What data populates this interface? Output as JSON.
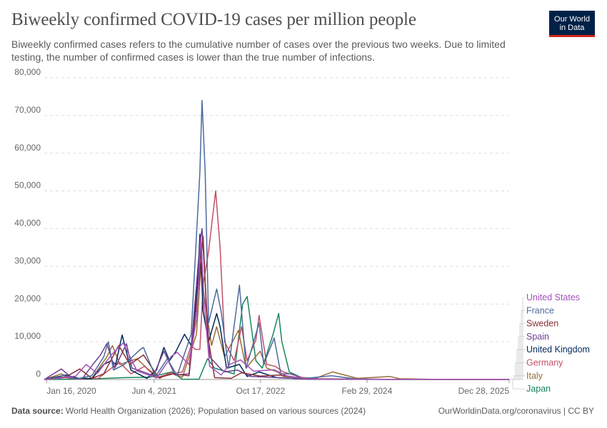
{
  "title": "Biweekly confirmed COVID-19 cases per million people",
  "subtitle": "Biweekly confirmed cases refers to the cumulative number of cases over the previous two weeks. Due to limited testing, the number of confirmed cases is lower than the true number of infections.",
  "logo": {
    "line1": "Our World",
    "line2": "in Data",
    "bg": "#002147",
    "accent": "#ce261e"
  },
  "footer": {
    "source_label": "Data source:",
    "source_text": "World Health Organization (2026); Population based on various sources (2024)",
    "right_text": "OurWorldinData.org/coronavirus | CC BY"
  },
  "chart_data": {
    "type": "line",
    "title": "Biweekly confirmed COVID-19 cases per million people",
    "xlabel": "",
    "ylabel": "",
    "x_ticks": [
      "Jan 16, 2020",
      "Jun 4, 2021",
      "Oct 17, 2022",
      "Feb 29, 2024",
      "Dec 28, 2025"
    ],
    "x_range": [
      "2020-01-05",
      "2025-12-28"
    ],
    "ylim": [
      0,
      80000
    ],
    "y_ticks": [
      0,
      10000,
      20000,
      30000,
      40000,
      50000,
      60000,
      70000,
      80000
    ],
    "y_tick_labels": [
      "0",
      "10,000",
      "20,000",
      "30,000",
      "40,000",
      "50,000",
      "60,000",
      "70,000",
      "80,000"
    ],
    "grid": "horizontal dashed",
    "legend": "right",
    "series": [
      {
        "name": "United States",
        "color": "#a652ba",
        "points": [
          [
            "2020-01-05",
            0
          ],
          [
            "2020-03-15",
            300
          ],
          [
            "2020-06-01",
            900
          ],
          [
            "2020-07-20",
            4000
          ],
          [
            "2020-09-10",
            1600
          ],
          [
            "2020-11-15",
            6500
          ],
          [
            "2021-01-10",
            9700
          ],
          [
            "2021-03-15",
            2300
          ],
          [
            "2021-06-15",
            400
          ],
          [
            "2021-08-25",
            6200
          ],
          [
            "2021-09-20",
            7200
          ],
          [
            "2021-11-15",
            4000
          ],
          [
            "2021-12-20",
            16000
          ],
          [
            "2022-01-10",
            38000
          ],
          [
            "2022-01-25",
            20000
          ],
          [
            "2022-02-20",
            3500
          ],
          [
            "2022-04-15",
            1200
          ],
          [
            "2022-05-25",
            4000
          ],
          [
            "2022-07-15",
            5200
          ],
          [
            "2022-09-15",
            2200
          ],
          [
            "2022-12-20",
            2600
          ],
          [
            "2023-02-15",
            1000
          ],
          [
            "2023-05-15",
            200
          ],
          [
            "2023-08-01",
            100
          ],
          [
            "2024-06-01",
            50
          ],
          [
            "2025-12-28",
            30
          ]
        ]
      },
      {
        "name": "France",
        "color": "#4c6a9c",
        "points": [
          [
            "2020-01-05",
            0
          ],
          [
            "2020-03-15",
            600
          ],
          [
            "2020-04-01",
            1200
          ],
          [
            "2020-06-01",
            100
          ],
          [
            "2020-08-15",
            1000
          ],
          [
            "2020-10-10",
            6000
          ],
          [
            "2020-11-01",
            10000
          ],
          [
            "2020-11-25",
            2500
          ],
          [
            "2021-01-15",
            4000
          ],
          [
            "2021-04-01",
            8000
          ],
          [
            "2021-04-15",
            8500
          ],
          [
            "2021-06-10",
            800
          ],
          [
            "2021-08-05",
            5500
          ],
          [
            "2021-09-20",
            1000
          ],
          [
            "2021-11-25",
            12000
          ],
          [
            "2022-01-05",
            55000
          ],
          [
            "2022-01-15",
            74000
          ],
          [
            "2022-01-30",
            55000
          ],
          [
            "2022-02-15",
            15000
          ],
          [
            "2022-03-25",
            24000
          ],
          [
            "2022-04-15",
            18000
          ],
          [
            "2022-05-20",
            3000
          ],
          [
            "2022-07-10",
            25000
          ],
          [
            "2022-08-10",
            3000
          ],
          [
            "2022-10-10",
            15000
          ],
          [
            "2022-11-01",
            4000
          ],
          [
            "2022-12-20",
            11000
          ],
          [
            "2023-01-20",
            1500
          ],
          [
            "2023-03-15",
            1500
          ],
          [
            "2023-05-01",
            200
          ],
          [
            "2023-09-15",
            1000
          ],
          [
            "2024-01-15",
            100
          ],
          [
            "2024-06-01",
            50
          ],
          [
            "2025-12-28",
            50
          ]
        ]
      },
      {
        "name": "Sweden",
        "color": "#883039",
        "points": [
          [
            "2020-01-05",
            0
          ],
          [
            "2020-04-15",
            700
          ],
          [
            "2020-06-20",
            2800
          ],
          [
            "2020-08-15",
            300
          ],
          [
            "2020-10-10",
            1500
          ],
          [
            "2020-12-20",
            9000
          ],
          [
            "2021-02-10",
            4000
          ],
          [
            "2021-04-15",
            6500
          ],
          [
            "2021-06-25",
            500
          ],
          [
            "2021-09-01",
            1500
          ],
          [
            "2021-11-15",
            1000
          ],
          [
            "2021-12-30",
            25000
          ],
          [
            "2022-01-20",
            38000
          ],
          [
            "2022-02-10",
            12000
          ],
          [
            "2022-03-15",
            500
          ],
          [
            "2022-06-01",
            300
          ],
          [
            "2022-07-20",
            1800
          ],
          [
            "2022-10-15",
            900
          ],
          [
            "2023-01-15",
            1200
          ],
          [
            "2023-05-15",
            200
          ],
          [
            "2024-06-01",
            20
          ],
          [
            "2025-12-28",
            10
          ]
        ]
      },
      {
        "name": "Spain",
        "color": "#6d3e91",
        "points": [
          [
            "2020-01-05",
            0
          ],
          [
            "2020-03-25",
            2800
          ],
          [
            "2020-05-15",
            400
          ],
          [
            "2020-07-01",
            200
          ],
          [
            "2020-08-20",
            4000
          ],
          [
            "2020-09-25",
            6500
          ],
          [
            "2020-10-25",
            9500
          ],
          [
            "2020-12-01",
            3000
          ],
          [
            "2021-01-25",
            9500
          ],
          [
            "2021-02-20",
            3000
          ],
          [
            "2021-04-15",
            2000
          ],
          [
            "2021-06-01",
            1000
          ],
          [
            "2021-07-20",
            7500
          ],
          [
            "2021-09-10",
            1200
          ],
          [
            "2021-11-15",
            1500
          ],
          [
            "2022-01-05",
            36000
          ],
          [
            "2022-01-15",
            40000
          ],
          [
            "2022-02-05",
            20000
          ],
          [
            "2022-02-20",
            6000
          ],
          [
            "2022-04-10",
            3000
          ],
          [
            "2022-05-01",
            2000
          ],
          [
            "2022-07-01",
            2500
          ],
          [
            "2022-09-01",
            800
          ],
          [
            "2023-01-15",
            500
          ],
          [
            "2023-06-01",
            100
          ],
          [
            "2024-06-01",
            20
          ],
          [
            "2025-12-28",
            10
          ]
        ]
      },
      {
        "name": "United Kingdom",
        "color": "#00295b",
        "points": [
          [
            "2020-01-05",
            0
          ],
          [
            "2020-04-15",
            1200
          ],
          [
            "2020-06-15",
            300
          ],
          [
            "2020-08-15",
            200
          ],
          [
            "2020-10-10",
            4000
          ],
          [
            "2020-11-15",
            5000
          ],
          [
            "2020-12-05",
            4000
          ],
          [
            "2021-01-05",
            11800
          ],
          [
            "2021-02-15",
            2500
          ],
          [
            "2021-05-01",
            300
          ],
          [
            "2021-06-15",
            2500
          ],
          [
            "2021-07-20",
            8500
          ],
          [
            "2021-08-15",
            5000
          ],
          [
            "2021-09-15",
            7500
          ],
          [
            "2021-10-25",
            12000
          ],
          [
            "2021-11-25",
            9000
          ],
          [
            "2021-12-25",
            25000
          ],
          [
            "2022-01-05",
            38500
          ],
          [
            "2022-01-20",
            18000
          ],
          [
            "2022-02-15",
            10000
          ],
          [
            "2022-03-25",
            17500
          ],
          [
            "2022-04-10",
            14000
          ],
          [
            "2022-05-10",
            3000
          ],
          [
            "2022-07-10",
            4000
          ],
          [
            "2022-08-15",
            800
          ],
          [
            "2022-10-10",
            2000
          ],
          [
            "2023-01-01",
            500
          ],
          [
            "2023-06-01",
            100
          ],
          [
            "2024-06-01",
            50
          ],
          [
            "2025-12-28",
            30
          ]
        ]
      },
      {
        "name": "Germany",
        "color": "#c15065",
        "points": [
          [
            "2020-01-05",
            0
          ],
          [
            "2020-04-10",
            500
          ],
          [
            "2020-06-15",
            100
          ],
          [
            "2020-09-15",
            300
          ],
          [
            "2020-11-15",
            3000
          ],
          [
            "2020-12-25",
            4500
          ],
          [
            "2021-02-15",
            1500
          ],
          [
            "2021-04-20",
            3500
          ],
          [
            "2021-06-15",
            500
          ],
          [
            "2021-08-15",
            1500
          ],
          [
            "2021-10-15",
            2000
          ],
          [
            "2021-11-25",
            9000
          ],
          [
            "2021-12-15",
            8000
          ],
          [
            "2022-01-05",
            8000
          ],
          [
            "2022-01-20",
            25000
          ],
          [
            "2022-02-15",
            34000
          ],
          [
            "2022-03-20",
            50000
          ],
          [
            "2022-04-10",
            35000
          ],
          [
            "2022-05-01",
            10000
          ],
          [
            "2022-06-15",
            5000
          ],
          [
            "2022-07-20",
            14000
          ],
          [
            "2022-08-15",
            5000
          ],
          [
            "2022-09-25",
            10500
          ],
          [
            "2022-10-10",
            17000
          ],
          [
            "2022-11-15",
            4000
          ],
          [
            "2022-12-25",
            3500
          ],
          [
            "2023-02-01",
            2000
          ],
          [
            "2023-04-01",
            1000
          ],
          [
            "2023-06-01",
            100
          ],
          [
            "2024-06-01",
            30
          ],
          [
            "2025-12-28",
            20
          ]
        ]
      },
      {
        "name": "Italy",
        "color": "#996d39",
        "points": [
          [
            "2020-01-05",
            0
          ],
          [
            "2020-03-25",
            1500
          ],
          [
            "2020-05-15",
            200
          ],
          [
            "2020-08-15",
            300
          ],
          [
            "2020-10-25",
            6000
          ],
          [
            "2020-11-20",
            9000
          ],
          [
            "2020-12-25",
            4000
          ],
          [
            "2021-03-15",
            5500
          ],
          [
            "2021-05-01",
            3000
          ],
          [
            "2021-07-01",
            300
          ],
          [
            "2021-08-15",
            1800
          ],
          [
            "2021-10-15",
            600
          ],
          [
            "2021-12-20",
            12000
          ],
          [
            "2022-01-10",
            30000
          ],
          [
            "2022-01-25",
            22000
          ],
          [
            "2022-03-01",
            9000
          ],
          [
            "2022-03-25",
            14000
          ],
          [
            "2022-05-01",
            6000
          ],
          [
            "2022-07-05",
            13000
          ],
          [
            "2022-08-10",
            3000
          ],
          [
            "2022-10-15",
            7500
          ],
          [
            "2022-11-15",
            3000
          ],
          [
            "2023-01-05",
            2000
          ],
          [
            "2023-02-01",
            800
          ],
          [
            "2023-07-01",
            300
          ],
          [
            "2023-09-20",
            2000
          ],
          [
            "2024-01-15",
            300
          ],
          [
            "2024-06-15",
            800
          ],
          [
            "2024-08-01",
            200
          ],
          [
            "2025-01-01",
            30
          ],
          [
            "2025-12-28",
            20
          ]
        ]
      },
      {
        "name": "Japan",
        "color": "#18865c",
        "points": [
          [
            "2020-01-05",
            0
          ],
          [
            "2020-04-20",
            50
          ],
          [
            "2020-08-10",
            150
          ],
          [
            "2021-01-15",
            500
          ],
          [
            "2021-05-15",
            600
          ],
          [
            "2021-08-25",
            2000
          ],
          [
            "2021-10-15",
            50
          ],
          [
            "2022-01-01",
            100
          ],
          [
            "2022-02-10",
            5500
          ],
          [
            "2022-03-15",
            3000
          ],
          [
            "2022-06-15",
            1500
          ],
          [
            "2022-07-25",
            20000
          ],
          [
            "2022-08-15",
            22000
          ],
          [
            "2022-09-25",
            5000
          ],
          [
            "2022-10-25",
            3000
          ],
          [
            "2022-12-15",
            12000
          ],
          [
            "2023-01-10",
            17500
          ],
          [
            "2023-01-25",
            10000
          ],
          [
            "2023-03-01",
            2000
          ],
          [
            "2023-05-15",
            100
          ],
          [
            "2023-07-01",
            50
          ],
          [
            "2024-06-01",
            20
          ],
          [
            "2025-12-28",
            10
          ]
        ]
      }
    ]
  }
}
